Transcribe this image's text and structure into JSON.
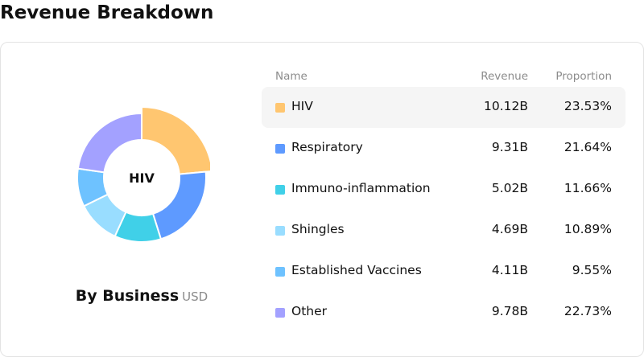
{
  "page": {
    "title": "Revenue Breakdown"
  },
  "donut": {
    "center_label": "HIV",
    "highlighted": "HIV"
  },
  "caption": {
    "title": "By Business",
    "unit": "USD"
  },
  "table": {
    "headers": {
      "name": "Name",
      "revenue": "Revenue",
      "proportion": "Proportion"
    }
  },
  "chart_data": {
    "type": "pie",
    "variant": "donut",
    "title": "By Business",
    "unit": "USD",
    "categories": [
      "HIV",
      "Respiratory",
      "Immuno-inflammation",
      "Shingles",
      "Established Vaccines",
      "Other"
    ],
    "revenue_labels": [
      "10.12B",
      "9.31B",
      "5.02B",
      "4.69B",
      "4.11B",
      "9.78B"
    ],
    "proportion_labels": [
      "23.53%",
      "21.64%",
      "11.66%",
      "10.89%",
      "9.55%",
      "22.73%"
    ],
    "values": [
      23.53,
      21.64,
      11.66,
      10.89,
      9.55,
      22.73
    ],
    "colors": [
      "#FFC670",
      "#5E9AFF",
      "#40D0E8",
      "#99DDFF",
      "#6EC2FF",
      "#A3A1FF"
    ],
    "highlighted_index": 0
  }
}
